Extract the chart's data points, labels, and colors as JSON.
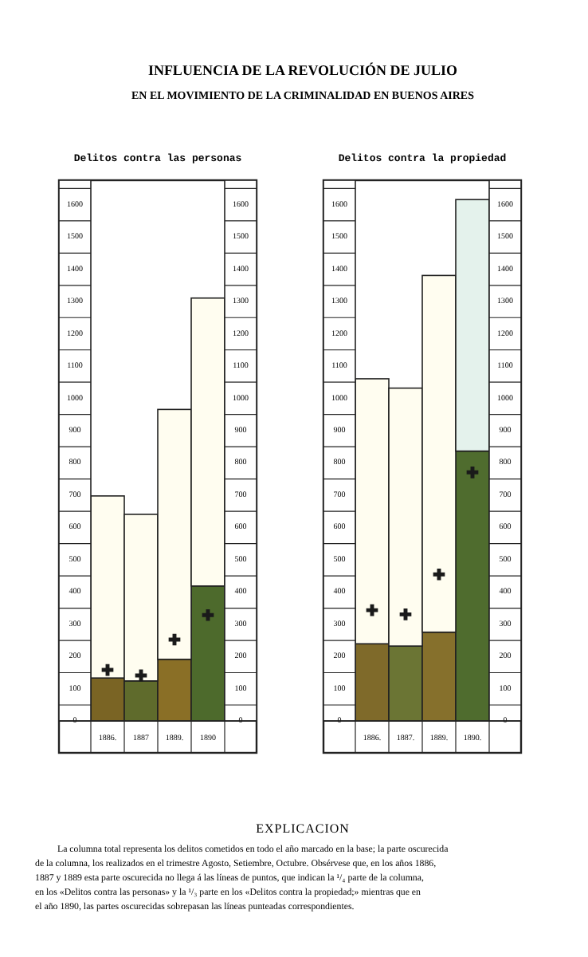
{
  "chart_data": [
    {
      "type": "bar",
      "title": "Delitos contra las personas",
      "stacked": true,
      "annotations": [
        "INFLUENCIA DE LA REVOLUCIÓN DE JULIO",
        "EN EL MOVIMIENTO DE LA CRIMINALIDAD EN BUENOS AIRES"
      ],
      "categories": [
        "1886.",
        "1887",
        "1889.",
        "1890"
      ],
      "series": [
        {
          "colors": [
            "#7a6424",
            "#5f6b2c",
            "#8a6f26",
            "#4d6a2c"
          ],
          "values": [
            133,
            124,
            191,
            418
          ]
        },
        {
          "color": "#fffdf0",
          "values": [
            564,
            516,
            774,
            892
          ]
        },
        {
          "type": "scatter",
          "marker": "cross",
          "color": "#1a1a1a",
          "values": [
            158,
            141,
            252,
            328
          ]
        }
      ],
      "ylim": [
        0,
        1675
      ],
      "yticks": [
        0,
        100,
        200,
        300,
        400,
        500,
        600,
        700,
        800,
        900,
        1000,
        1100,
        1200,
        1300,
        1400,
        1500,
        1600
      ],
      "y2lim": [
        0,
        1675
      ],
      "y2ticks": [
        0,
        100,
        200,
        300,
        400,
        500,
        600,
        700,
        800,
        900,
        1000,
        1100,
        1200,
        1300,
        1400,
        1500,
        1600
      ]
    },
    {
      "type": "bar",
      "title": "Delitos contra la propiedad",
      "stacked": true,
      "annotations": [
        "EXPLICACION",
        "La columna total representa los delitos cometidos en todo el año marcado en la base; la parte oscurecida de la columna, los realizados en el trimestre Agosto, Setiembre, Octubre. Obsérvese que, en los años 1886, 1887 y 1889 esta parte oscurecida no llega á las líneas de puntos, que indican la ¹/₄ parte de la columna, en los «Delitos contra las personas» y la ¹/₃ parte en los «Delitos contra la propiedad;» mientras que en el año 1890, las partes oscurecidas sobrepasan las líneas punteadas correspondientes."
      ],
      "categories": [
        "1886.",
        "1887.",
        "1889.",
        "1890."
      ],
      "series": [
        {
          "colors": [
            "#7f6a2a",
            "#6b7534",
            "#86702c",
            "#4f6c2e"
          ],
          "values": [
            239,
            232,
            275,
            836
          ]
        },
        {
          "colors": [
            "#fffdf0",
            "#fffdf0",
            "#fffdf0",
            "#e4f2ec"
          ],
          "values": [
            821,
            799,
            1105,
            779
          ]
        },
        {
          "type": "scatter",
          "marker": "cross",
          "color": "#1a1a1a",
          "values": [
            343,
            330,
            454,
            770
          ]
        }
      ],
      "ylim": [
        0,
        1675
      ],
      "yticks": [
        0,
        100,
        200,
        300,
        400,
        500,
        600,
        700,
        800,
        900,
        1000,
        1100,
        1200,
        1300,
        1400,
        1500,
        1600
      ],
      "y2lim": [
        0,
        1675
      ],
      "y2ticks": [
        0,
        100,
        200,
        300,
        400,
        500,
        600,
        700,
        800,
        900,
        1000,
        1100,
        1200,
        1300,
        1400,
        1500,
        1600
      ]
    }
  ]
}
